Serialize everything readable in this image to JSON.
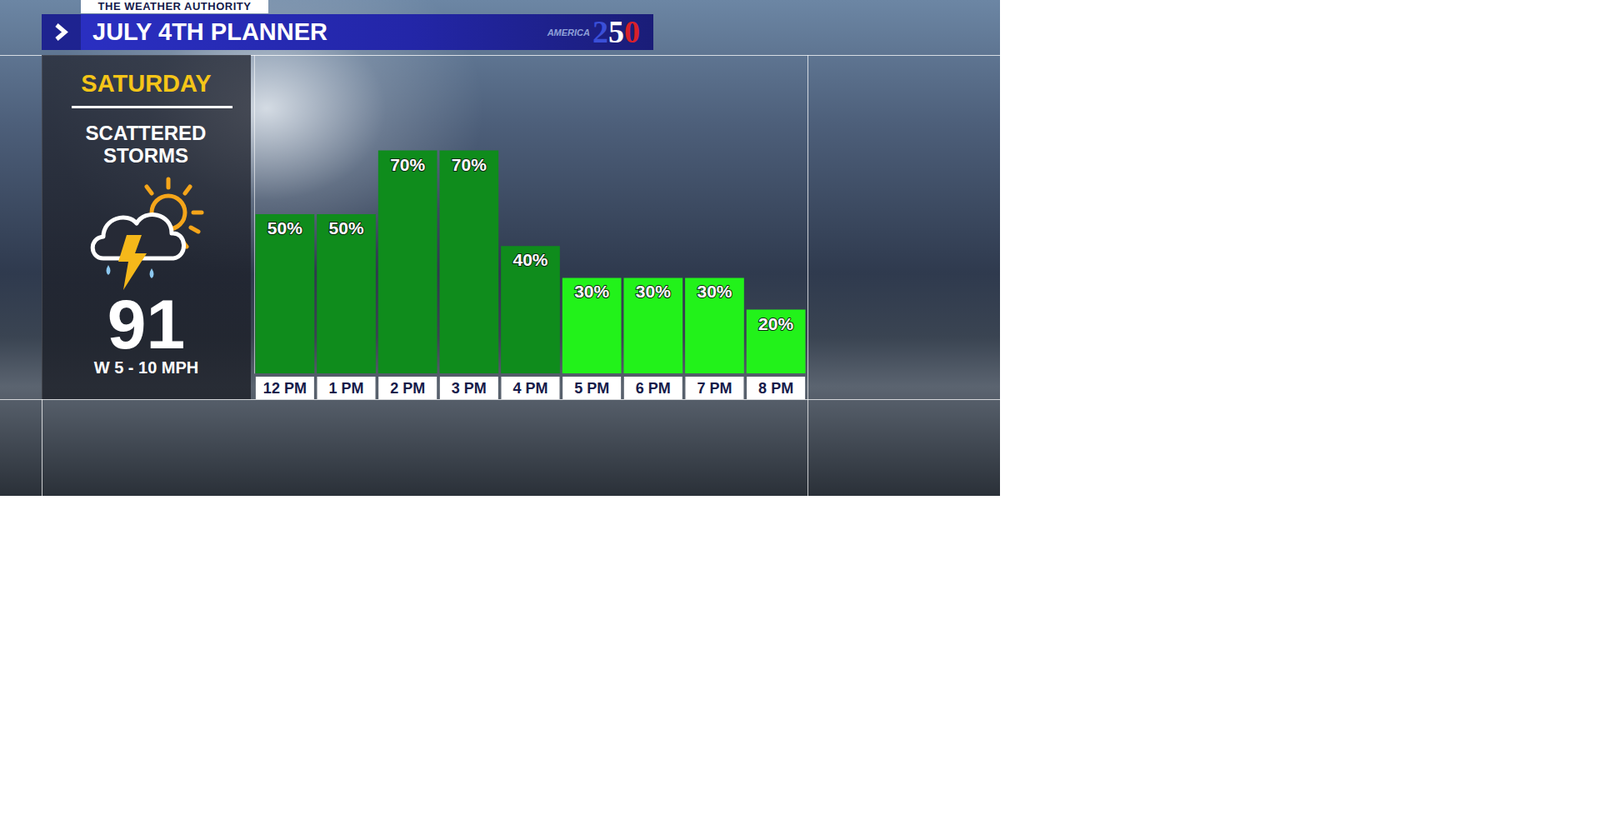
{
  "header": {
    "tag": "THE WEATHER AUTHORITY",
    "title": "JULY 4TH PLANNER",
    "logo_text": "AMERICA",
    "logo_number": "250"
  },
  "panel": {
    "day": "SATURDAY",
    "condition": "SCATTERED STORMS",
    "temperature": 91,
    "wind": "W 5 - 10 MPH"
  },
  "chart_data": {
    "type": "bar",
    "categories": [
      "12 PM",
      "1 PM",
      "2 PM",
      "3 PM",
      "4 PM",
      "5 PM",
      "6 PM",
      "7 PM",
      "8 PM"
    ],
    "values": [
      50,
      50,
      70,
      70,
      40,
      30,
      30,
      30,
      20
    ],
    "value_labels": [
      "50%",
      "50%",
      "70%",
      "70%",
      "40%",
      "30%",
      "30%",
      "30%",
      "20%"
    ],
    "colors": [
      "#0f8c1c",
      "#0f8c1c",
      "#0f8c1c",
      "#0f8c1c",
      "#0f8c1c",
      "#22f21a",
      "#22f21a",
      "#22f21a",
      "#22f21a"
    ],
    "ylim": [
      0,
      100
    ],
    "grid": false,
    "data_labels": true,
    "tick_labels": "x"
  }
}
